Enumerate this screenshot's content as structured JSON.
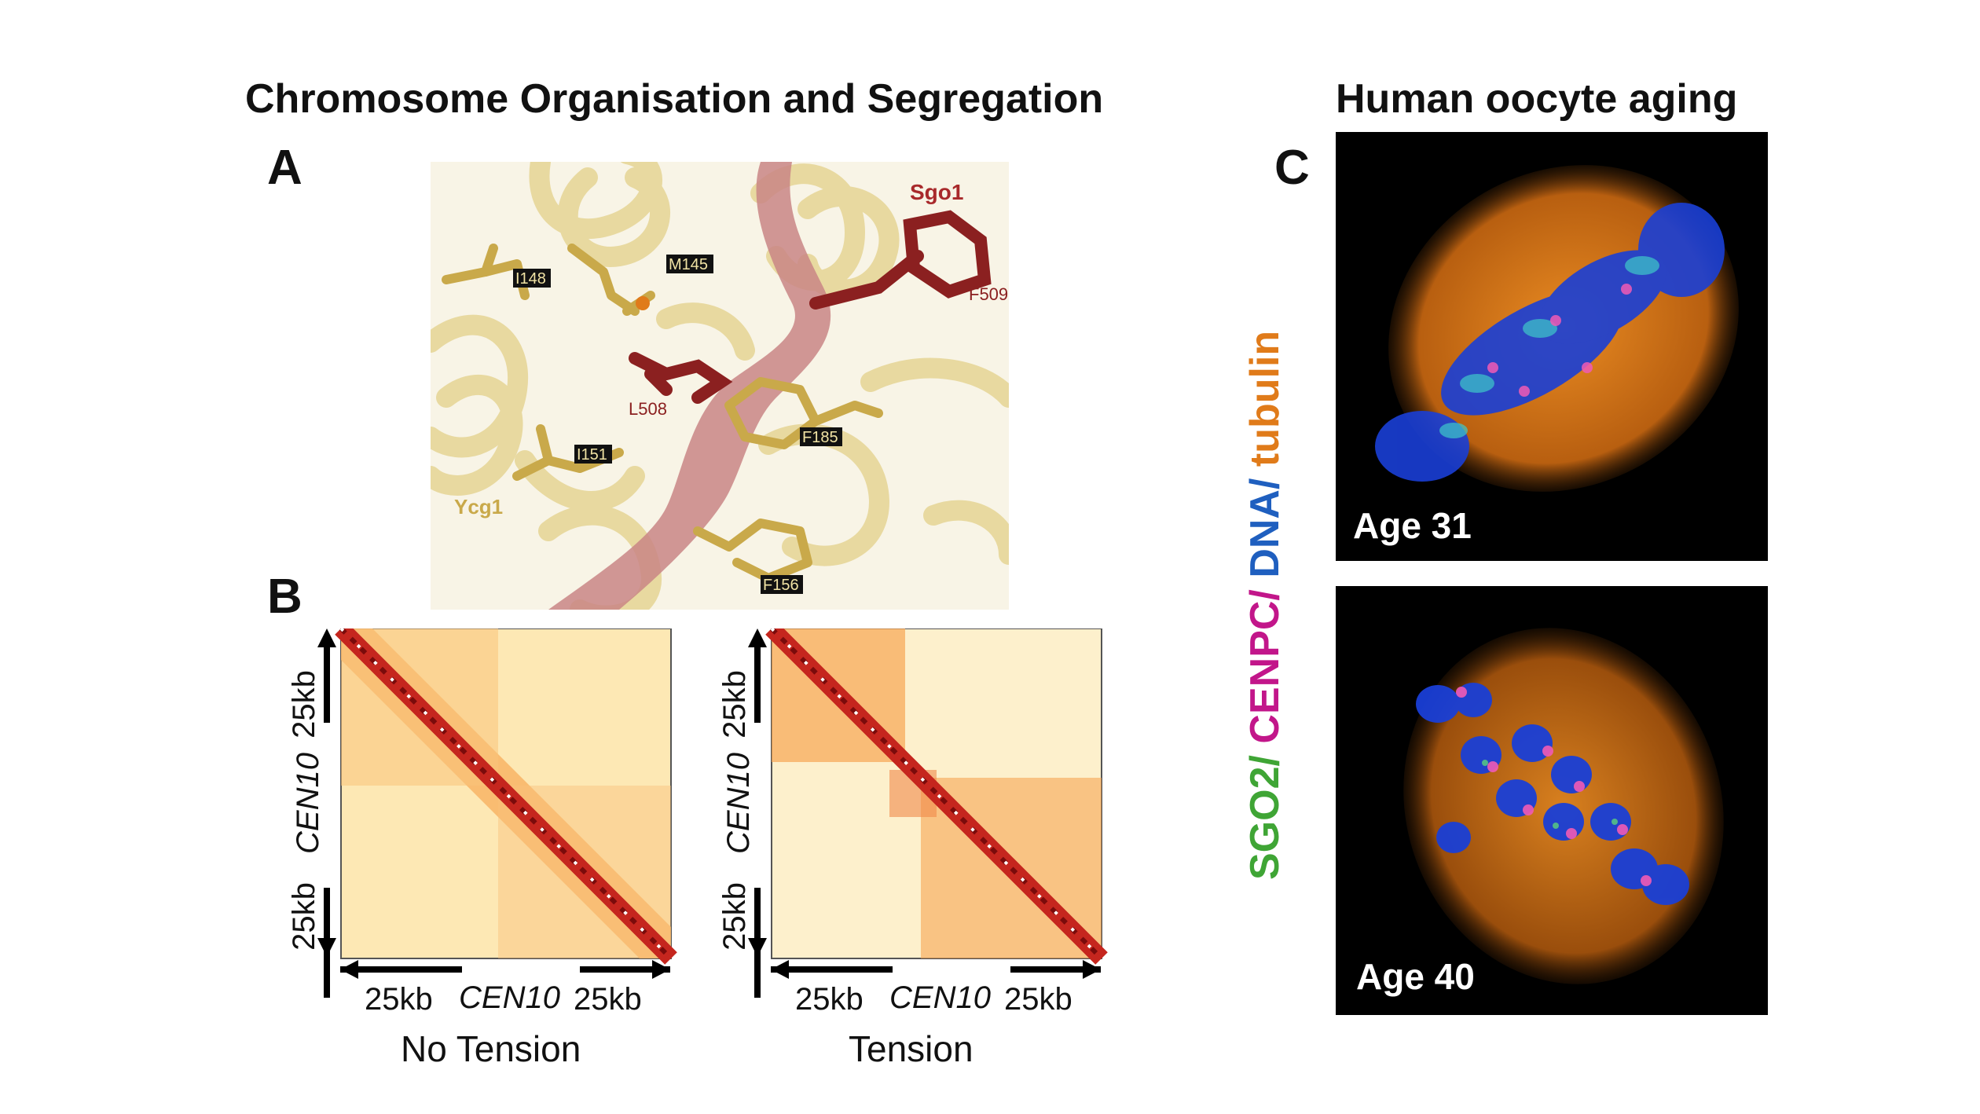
{
  "figure": {
    "title_left": "Chromosome Organisation and Segregation",
    "title_right": "Human oocyte aging",
    "panel_a": {
      "letter": "A",
      "labels": {
        "sgo1": "Sgo1",
        "f509": "F509",
        "m145": "M145",
        "i148": "I148",
        "l508": "L508",
        "f185": "F185",
        "i151": "I151",
        "ycg1": "Ycg1",
        "f156": "F156"
      },
      "colors": {
        "ycg1": "#e8d9a0",
        "sgo1": "#8b2020",
        "residues": "#c9a94a"
      }
    },
    "panel_b": {
      "letter": "B",
      "heatmaps": [
        {
          "caption": "No Tension",
          "side_top": "25kb",
          "side_mid": "CEN10",
          "side_bottom": "25kb",
          "bottom_left": "25kb",
          "bottom_mid": "CEN10",
          "bottom_right": "25kb"
        },
        {
          "caption": "Tension",
          "side_top": "25kb",
          "side_mid": "CEN10",
          "side_bottom": "25kb",
          "bottom_left": "25kb",
          "bottom_mid": "CEN10",
          "bottom_right": "25kb"
        }
      ]
    },
    "panel_c": {
      "letter": "C",
      "stain_legend": {
        "sgo2": "SGO2/",
        "cenpc": " CENPC/",
        "dna": " DNA/",
        "tubulin": " tubulin"
      },
      "stain_colors": {
        "sgo2": "#3fa535",
        "cenpc": "#c2168a",
        "dna": "#1f5fbf",
        "tubulin": "#e07b1a"
      },
      "images": [
        {
          "label": "Age 31"
        },
        {
          "label": "Age 40"
        }
      ]
    }
  }
}
